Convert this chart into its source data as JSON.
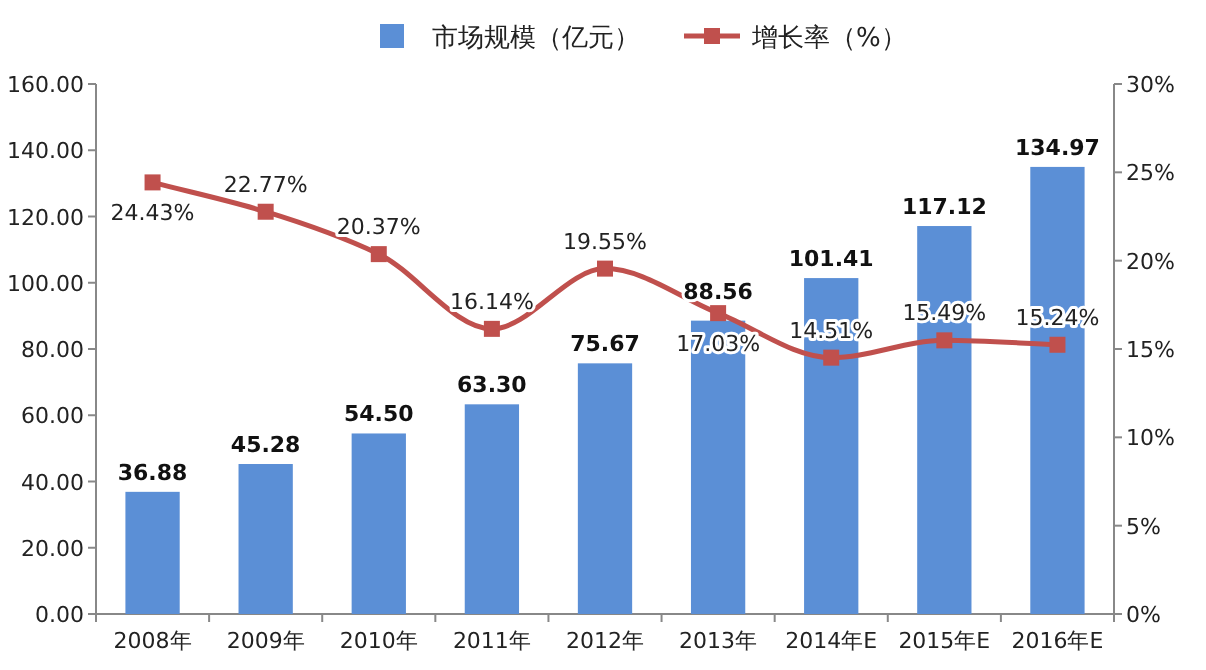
{
  "chart_data": {
    "type": "bar",
    "categories": [
      "2008年",
      "2009年",
      "2010年",
      "2011年",
      "2012年",
      "2013年",
      "2014年E",
      "2015年E",
      "2016年E"
    ],
    "series": [
      {
        "name": "市场规模（亿元）",
        "color": "#5b8fd6",
        "values": [
          36.88,
          45.28,
          54.5,
          63.3,
          75.67,
          88.56,
          101.41,
          117.12,
          134.97
        ],
        "value_labels": [
          "36.88",
          "45.28",
          "54.50",
          "63.30",
          "75.67",
          "88.56",
          "101.41",
          "117.12",
          "134.97"
        ]
      },
      {
        "name": "增长率（%）",
        "type": "line",
        "axis": "y2",
        "color": "#c0504d",
        "marker": "square",
        "line_style": "solid",
        "values": [
          24.43,
          22.77,
          20.37,
          16.14,
          19.55,
          17.03,
          14.51,
          15.49,
          15.24
        ],
        "value_labels": [
          "24.43%",
          "22.77%",
          "20.37%",
          "16.14%",
          "19.55%",
          "17.03%",
          "14.51%",
          "15.49%",
          "15.24%"
        ]
      }
    ],
    "ylim": [
      0,
      160
    ],
    "yticks": [
      {
        "value": 0,
        "label": "0.00"
      },
      {
        "value": 20,
        "label": "20.00"
      },
      {
        "value": 40,
        "label": "40.00"
      },
      {
        "value": 60,
        "label": "60.00"
      },
      {
        "value": 80,
        "label": "80.00"
      },
      {
        "value": 100,
        "label": "100.00"
      },
      {
        "value": 120,
        "label": "120.00"
      },
      {
        "value": 140,
        "label": "140.00"
      },
      {
        "value": 160,
        "label": "160.00"
      }
    ],
    "y2lim": [
      0,
      30
    ],
    "y2ticks": [
      {
        "value": 0,
        "label": "0%"
      },
      {
        "value": 5,
        "label": "5%"
      },
      {
        "value": 10,
        "label": "10%"
      },
      {
        "value": 15,
        "label": "15%"
      },
      {
        "value": 20,
        "label": "20%"
      },
      {
        "value": 25,
        "label": "25%"
      },
      {
        "value": 30,
        "label": "30%"
      }
    ],
    "legend": "top"
  }
}
